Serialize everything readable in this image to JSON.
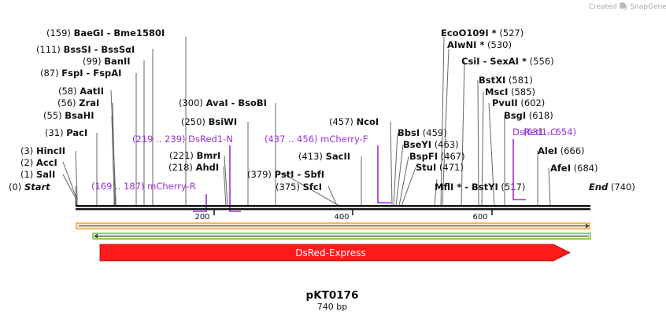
{
  "credit": "Created by SnapGene",
  "plasmid": {
    "name": "pKT0176",
    "length_label": "740 bp",
    "length": 740
  },
  "scale": {
    "ticks": [
      "200",
      "400",
      "600"
    ]
  },
  "sites": [
    {
      "pos": "(0)",
      "name": "Start",
      "italic": true,
      "side": "left"
    },
    {
      "pos": "(1)",
      "name": "SalI",
      "side": "left"
    },
    {
      "pos": "(2)",
      "name": "AccI",
      "side": "left"
    },
    {
      "pos": "(3)",
      "name": "HincII",
      "side": "left"
    },
    {
      "pos": "(31)",
      "name": "PacI",
      "side": "left"
    },
    {
      "pos": "(55)",
      "name": "BsaHI",
      "side": "left"
    },
    {
      "pos": "(56)",
      "name": "ZraI",
      "side": "left"
    },
    {
      "pos": "(58)",
      "name": "AatII",
      "side": "left"
    },
    {
      "pos": "(87)",
      "name": "FspI  -  FspAI",
      "side": "left"
    },
    {
      "pos": "(99)",
      "name": "BanII",
      "side": "left"
    },
    {
      "pos": "(111)",
      "name": "BssSI  -  BssSαI",
      "side": "left"
    },
    {
      "pos": "(159)",
      "name": "BaeGI  -  Bme1580I",
      "side": "left"
    },
    {
      "pos": "(218)",
      "name": "AhdI",
      "side": "left"
    },
    {
      "pos": "(221)",
      "name": "BmrI",
      "side": "left"
    },
    {
      "pos": "(250)",
      "name": "BsiWI",
      "side": "left"
    },
    {
      "pos": "(300)",
      "name": "AvaI  -  BsoBI",
      "side": "left"
    },
    {
      "pos": "(375)",
      "name": "SfcI",
      "side": "left"
    },
    {
      "pos": "(379)",
      "name": "PstI  -  SbfI",
      "side": "left"
    },
    {
      "pos": "(413)",
      "name": "SacII",
      "side": "left"
    },
    {
      "pos": "(457)",
      "name": "NcoI",
      "side": "left"
    },
    {
      "pos": "(459)",
      "name": "BbsI",
      "side": "right"
    },
    {
      "pos": "(463)",
      "name": "BseYI",
      "side": "right"
    },
    {
      "pos": "(467)",
      "name": "BspFI",
      "side": "right"
    },
    {
      "pos": "(471)",
      "name": "StuI",
      "side": "right"
    },
    {
      "pos": "(517)",
      "name": "MflI *  -  BstYI",
      "side": "right"
    },
    {
      "pos": "(527)",
      "name": "EcoO109I *",
      "side": "right"
    },
    {
      "pos": "(530)",
      "name": "AlwNI *",
      "side": "right"
    },
    {
      "pos": "(556)",
      "name": "CsiI  -  SexAI *",
      "side": "right"
    },
    {
      "pos": "(581)",
      "name": "BstXI",
      "side": "right"
    },
    {
      "pos": "(585)",
      "name": "MscI",
      "side": "right"
    },
    {
      "pos": "(602)",
      "name": "PvuII",
      "side": "right"
    },
    {
      "pos": "(618)",
      "name": "BsgI",
      "side": "right"
    },
    {
      "pos": "(666)",
      "name": "AleI",
      "side": "right"
    },
    {
      "pos": "(684)",
      "name": "AfeI",
      "side": "right"
    },
    {
      "pos": "(740)",
      "name": "End",
      "italic": true,
      "side": "right"
    }
  ],
  "primers": [
    {
      "range": "(169 .. 187)",
      "name": "mCherry-R"
    },
    {
      "range": "(219 .. 239)",
      "name": "DsRed1-N"
    },
    {
      "range": "(437 .. 456)",
      "name": "mCherry-F"
    },
    {
      "name": "DsRed1-C",
      "range": "(631 .. 654)"
    }
  ],
  "features": [
    {
      "name": "DsRed-Express",
      "start": 34,
      "end": 711,
      "direction": "forward",
      "color": "#ff1a1a"
    }
  ],
  "colors": {
    "primer": "#9b30d9",
    "orf_orange": "#f0a030",
    "orf_green": "#6cc030",
    "feature": "#ff1a1a"
  }
}
